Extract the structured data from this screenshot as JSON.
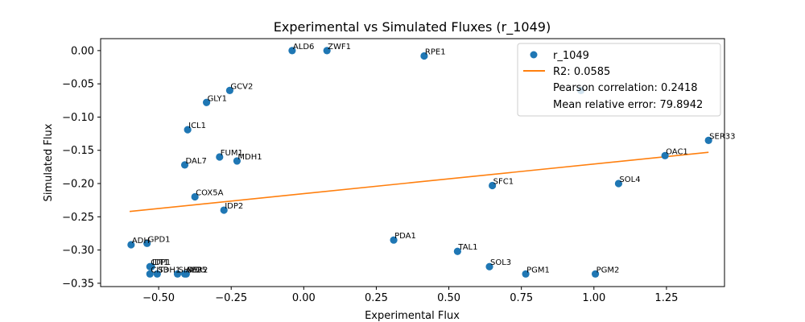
{
  "chart_data": {
    "type": "scatter",
    "title": "Experimental vs Simulated Fluxes (r_1049)",
    "xlabel": "Experimental Flux",
    "ylabel": "Simulated Flux",
    "xlim": [
      -0.7,
      1.45
    ],
    "ylim": [
      -0.355,
      0.018
    ],
    "xticks": [
      -0.5,
      -0.25,
      0.0,
      0.25,
      0.5,
      0.75,
      1.0,
      1.25
    ],
    "xtick_labels": [
      "−0.50",
      "−0.25",
      "0.00",
      "0.25",
      "0.50",
      "0.75",
      "1.00",
      "1.25"
    ],
    "yticks": [
      0.0,
      -0.05,
      -0.1,
      -0.15,
      -0.2,
      -0.25,
      -0.3,
      -0.35
    ],
    "ytick_labels": [
      "0.00",
      "−0.05",
      "−0.10",
      "−0.15",
      "−0.20",
      "−0.25",
      "−0.30",
      "−0.35"
    ],
    "grid": false,
    "legend_position": "top-right",
    "colors": {
      "points": "#1f77b4",
      "fit_line": "#ff7f0e"
    },
    "series": [
      {
        "name": "r_1049",
        "points": [
          {
            "label": "ALD6",
            "x": -0.04,
            "y": 0.0
          },
          {
            "label": "ZWF1",
            "x": 0.08,
            "y": 0.0
          },
          {
            "label": "RPE1",
            "x": 0.415,
            "y": -0.008
          },
          {
            "label": "GCV2",
            "x": -0.255,
            "y": -0.06
          },
          {
            "label": "GLY1",
            "x": -0.335,
            "y": -0.078
          },
          {
            "label": "ICL1",
            "x": -0.4,
            "y": -0.119
          },
          {
            "label": "FUM1",
            "x": -0.29,
            "y": -0.16
          },
          {
            "label": "MDH1",
            "x": -0.23,
            "y": -0.166
          },
          {
            "label": "DAL7",
            "x": -0.41,
            "y": -0.172
          },
          {
            "label": "COX5A",
            "x": -0.375,
            "y": -0.22
          },
          {
            "label": "IDP2",
            "x": -0.275,
            "y": -0.24
          },
          {
            "label": "ADH",
            "x": -0.595,
            "y": -0.292
          },
          {
            "label": "GPD1",
            "x": -0.54,
            "y": -0.29
          },
          {
            "label": "PDA1",
            "x": 0.31,
            "y": -0.285
          },
          {
            "label": "TAL1",
            "x": 0.53,
            "y": -0.302
          },
          {
            "label": "SOL3",
            "x": 0.64,
            "y": -0.325
          },
          {
            "label": "PGM1",
            "x": 0.765,
            "y": -0.336
          },
          {
            "label": "PGM2",
            "x": 1.005,
            "y": -0.336
          },
          {
            "label": "SFC1",
            "x": 0.65,
            "y": -0.203
          },
          {
            "label": "SOL4",
            "x": 1.085,
            "y": -0.2
          },
          {
            "label": "OAC1",
            "x": 1.245,
            "y": -0.158
          },
          {
            "label": "SER33",
            "x": 1.395,
            "y": -0.135
          },
          {
            "label": "CIT1",
            "x": -0.53,
            "y": -0.325
          },
          {
            "label": "IDP1",
            "x": -0.525,
            "y": -0.325
          },
          {
            "label": "CIT3",
            "x": -0.53,
            "y": -0.336
          },
          {
            "label": "SDH1",
            "x": -0.505,
            "y": -0.336
          },
          {
            "label": "SHM2",
            "x": -0.435,
            "y": -0.336
          },
          {
            "label": "ALD5",
            "x": -0.41,
            "y": -0.336
          },
          {
            "label": "SER2",
            "x": -0.405,
            "y": -0.336
          }
        ]
      }
    ],
    "fit_line": {
      "name": "R2: 0.0585",
      "x": [
        -0.6,
        1.395
      ],
      "y": [
        -0.242,
        -0.153
      ]
    },
    "legend_text": [
      "Pearson correlation: 0.2418",
      "Mean relative error: 79.8942"
    ],
    "partially_hidden_point": {
      "x": 0.955,
      "y": -0.06
    }
  }
}
